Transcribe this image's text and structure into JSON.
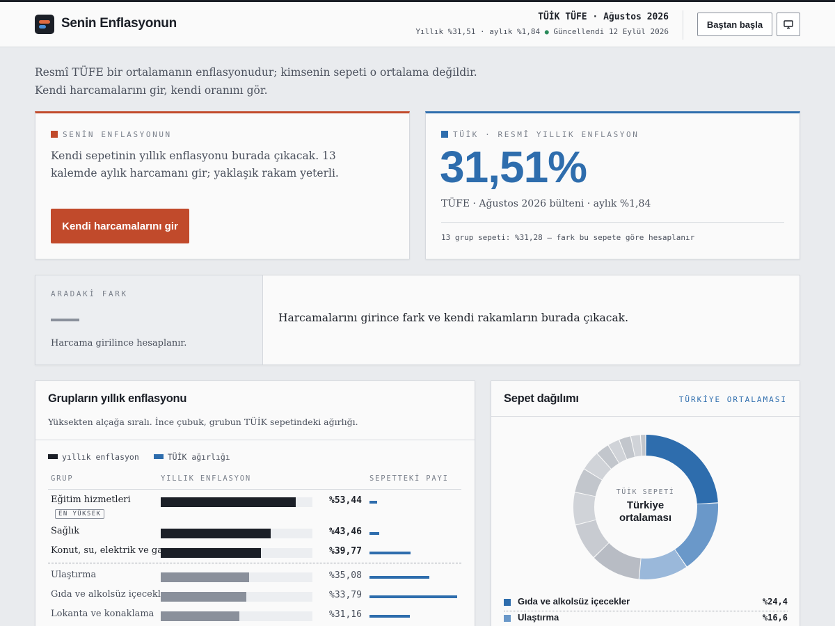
{
  "header": {
    "app_title": "Senin Enflasyonun",
    "headline": "TÜİK TÜFE · Ağustos 2026",
    "subline_rates": "Yıllık %31,51 · aylık %1,84",
    "status_dot": "●",
    "updated": "Güncellendi 12 Eylül 2026",
    "reset_button": "Baştan başla",
    "screen_icon": "monitor-icon"
  },
  "intro": {
    "line1": "Resmî TÜFE bir ortalamanın enflasyonudur; kimsenin sepeti o ortalama değildir.",
    "line2": "Kendi harcamalarını gir, kendi oranını gör."
  },
  "your_card": {
    "kicker": "SENİN ENFLASYONUN",
    "description": "Kendi sepetinin yıllık enflasyonu burada çıkacak. 13 kalemde aylık harcamanı gir; yaklaşık rakam yeterli.",
    "button": "Kendi harcamalarını gir",
    "accent": "#c14a2b"
  },
  "tuik_card": {
    "kicker": "TÜİK · RESMÎ YILLIK ENFLASYON",
    "value": "31,51%",
    "bulletin": "TÜFE · Ağustos 2026 bülteni · aylık %1,84",
    "note": "13 grup sepeti: %31,28 — fark bu sepete göre hesaplanır",
    "accent": "#2e6dad"
  },
  "diff_card": {
    "kicker": "ARADAKİ FARK",
    "hint": "Harcama girilince hesaplanır.",
    "message": "Harcamalarını girince fark ve kendi rakamların burada çıkacak."
  },
  "groups_card": {
    "title": "Grupların yıllık enflasyonu",
    "subtitle": "Yüksekten alçağa sıralı. İnce çubuk, grubun TÜİK sepetindeki ağırlığı.",
    "legend_inflation": "yıllık enflasyon",
    "legend_weight": "TÜİK ağırlığı",
    "col_group": "GRUP",
    "col_inflation": "YILLIK ENFLASYON",
    "col_share": "SEPETTEKİ PAYI",
    "top_tag": "EN YÜKSEK",
    "scale_max": 60,
    "share_max": 24.4,
    "rows": [
      {
        "name": "Eğitim hizmetleri",
        "value": 53.44,
        "label": "%53,44",
        "share": 2.2,
        "highlight": true
      },
      {
        "name": "Sağlık",
        "value": 43.46,
        "label": "%43,46",
        "share": 2.7,
        "highlight": true
      },
      {
        "name": "Konut, su, elektrik ve gaz",
        "value": 39.77,
        "label": "%39,77",
        "share": 11.4,
        "highlight": true
      },
      {
        "name": "Ulaştırma",
        "value": 35.08,
        "label": "%35,08",
        "share": 16.6,
        "highlight": false
      },
      {
        "name": "Gıda ve alkolsüz içecekler",
        "value": 33.79,
        "label": "%33,79",
        "share": 24.4,
        "highlight": false
      },
      {
        "name": "Lokanta ve konaklama",
        "value": 31.16,
        "label": "%31,16",
        "share": 11.2,
        "highlight": false
      }
    ]
  },
  "basket_card": {
    "title": "Sepet dağılımı",
    "tag": "TÜRKİYE ORTALAMASI",
    "center_kicker": "TÜİK SEPETİ",
    "center_title": "Türkiye ortalaması",
    "legend": [
      {
        "label": "Gıda ve alkolsüz içecekler",
        "pct": "%24,4",
        "color": "#2e6dad"
      },
      {
        "label": "Ulaştırma",
        "pct": "%16,6",
        "color": "#6a98c9"
      }
    ],
    "segments": [
      24.4,
      16.6,
      11.2,
      11.4,
      8.4,
      7.4,
      5.6,
      4.5,
      3.1,
      2.7,
      2.7,
      2.2,
      1.2
    ],
    "segment_colors": [
      "#2e6dad",
      "#6a98c9",
      "#9ab8da",
      "#b8bcc4",
      "#c8cbd1",
      "#d0d3d8",
      "#c2c6cc",
      "#d0d3d8",
      "#c2c6cc",
      "#d0d3d8",
      "#c2c6cc",
      "#d0d3d8",
      "#c2c6cc"
    ]
  }
}
